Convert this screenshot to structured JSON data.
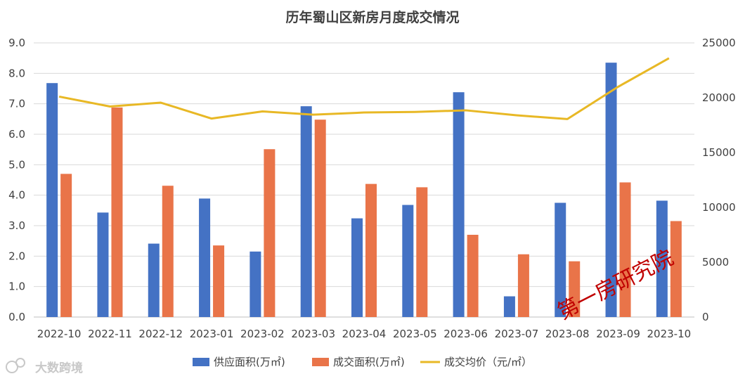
{
  "chart_data": {
    "type": "bar",
    "title": "历年蜀山区新房月度成交情况",
    "categories": [
      "2022-10",
      "2022-11",
      "2022-12",
      "2023-01",
      "2023-02",
      "2023-03",
      "2023-04",
      "2023-05",
      "2023-06",
      "2023-07",
      "2023-08",
      "2023-09",
      "2023-10"
    ],
    "series": [
      {
        "name": "供应面积(万㎡)",
        "kind": "bar",
        "axis": "left",
        "color": "#4472C4",
        "values": [
          7.68,
          3.43,
          2.41,
          3.89,
          2.15,
          6.92,
          3.24,
          3.68,
          7.38,
          0.68,
          3.75,
          8.35,
          3.82
        ]
      },
      {
        "name": "成交面积(万㎡)",
        "kind": "bar",
        "axis": "left",
        "color": "#E97449",
        "values": [
          4.7,
          6.88,
          4.31,
          2.35,
          5.51,
          6.48,
          4.37,
          4.26,
          2.7,
          2.06,
          1.83,
          4.42,
          3.15
        ]
      },
      {
        "name": "成交均价（元/㎡）",
        "kind": "line",
        "axis": "right",
        "color": "#E8B825",
        "values": [
          20100,
          19200,
          19550,
          18100,
          18750,
          18450,
          18650,
          18700,
          18850,
          18400,
          18050,
          21000,
          23600
        ]
      }
    ],
    "ylim_left": [
      0,
      9
    ],
    "yticks_left": [
      "0.0",
      "1.0",
      "2.0",
      "3.0",
      "4.0",
      "5.0",
      "6.0",
      "7.0",
      "8.0",
      "9.0"
    ],
    "ylim_right": [
      0,
      25000
    ],
    "yticks_right": [
      "0",
      "5000",
      "10000",
      "15000",
      "20000",
      "25000"
    ],
    "grid": true,
    "legend_position": "bottom"
  },
  "watermarks": {
    "stamp": "第一房研究院",
    "corner": "大数跨境"
  }
}
